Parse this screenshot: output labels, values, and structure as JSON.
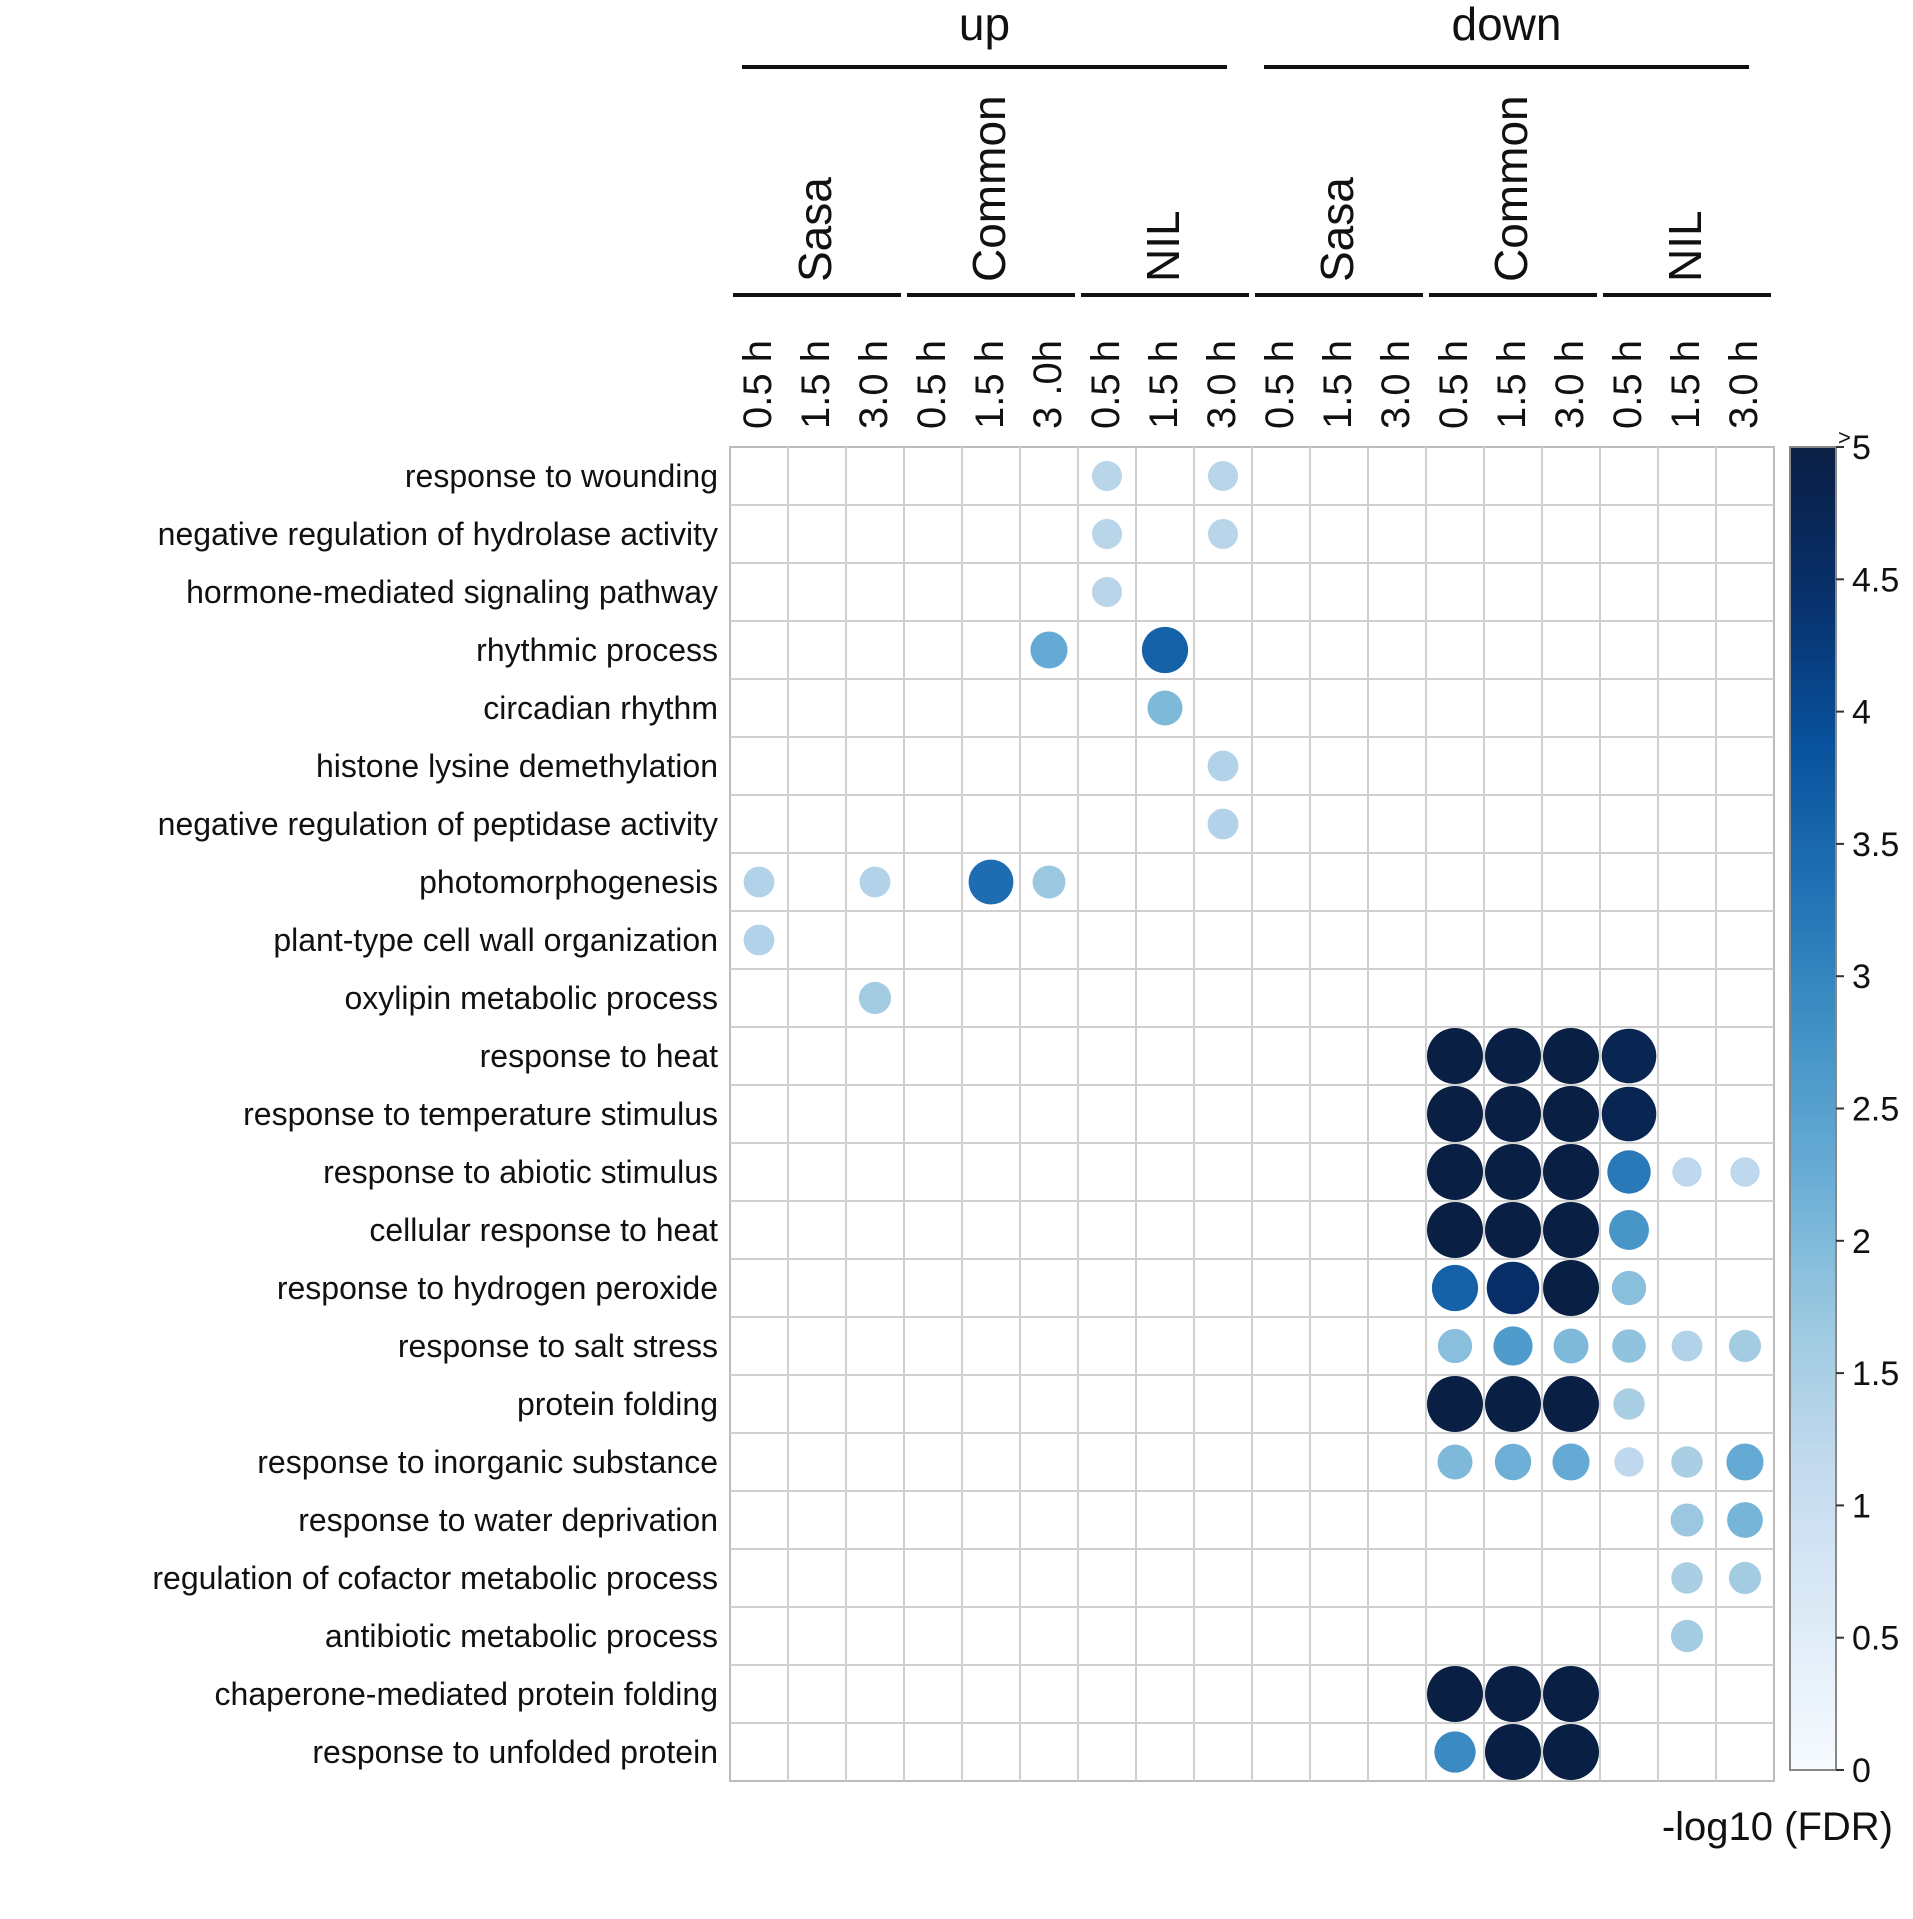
{
  "chart_data": {
    "type": "heatmap",
    "title": "",
    "groups": [
      {
        "label": "up",
        "subgroups": [
          "Sasa",
          "Common",
          "NIL"
        ]
      },
      {
        "label": "down",
        "subgroups": [
          "Sasa",
          "Common",
          "NIL"
        ]
      }
    ],
    "columns": [
      "0.5 h",
      "1.5 h",
      "3.0 h",
      "0.5 h",
      "1.5 h",
      "3 .0h",
      "0.5 h",
      "1.5 h",
      "3.0 h",
      "0.5 h",
      "1.5 h",
      "3.0 h",
      "0.5 h",
      "1.5 h",
      "3.0 h",
      "0.5 h",
      "1.5 h",
      "3.0 h"
    ],
    "rows": [
      "response to wounding",
      "negative regulation of hydrolase activity",
      "hormone-mediated signaling pathway",
      "rhythmic process",
      "circadian rhythm",
      "histone lysine demethylation",
      "negative regulation of peptidase activity",
      "photomorphogenesis",
      "plant-type cell wall organization",
      "oxylipin metabolic process",
      "response to heat",
      "response to temperature stimulus",
      "response to abiotic stimulus",
      "cellular response to heat",
      "response to hydrogen peroxide",
      "response to salt stress",
      "protein folding",
      "response to inorganic substance",
      "response to water deprivation",
      "regulation of cofactor metabolic process",
      "antibiotic metabolic process",
      "chaperone-mediated protein folding",
      "response to unfolded protein"
    ],
    "points": [
      [
        0,
        6,
        1.3
      ],
      [
        0,
        8,
        1.3
      ],
      [
        1,
        6,
        1.3
      ],
      [
        1,
        8,
        1.3
      ],
      [
        2,
        6,
        1.3
      ],
      [
        3,
        5,
        2.3
      ],
      [
        3,
        7,
        3.6
      ],
      [
        4,
        7,
        2.0
      ],
      [
        5,
        8,
        1.4
      ],
      [
        6,
        8,
        1.4
      ],
      [
        7,
        0,
        1.4
      ],
      [
        7,
        2,
        1.4
      ],
      [
        7,
        4,
        3.4
      ],
      [
        7,
        5,
        1.7
      ],
      [
        8,
        0,
        1.4
      ],
      [
        9,
        2,
        1.6
      ],
      [
        10,
        12,
        5
      ],
      [
        10,
        13,
        5
      ],
      [
        10,
        14,
        5
      ],
      [
        10,
        15,
        4.8
      ],
      [
        11,
        12,
        5
      ],
      [
        11,
        13,
        5
      ],
      [
        11,
        14,
        5
      ],
      [
        11,
        15,
        4.8
      ],
      [
        12,
        12,
        5
      ],
      [
        12,
        13,
        5
      ],
      [
        12,
        14,
        5
      ],
      [
        12,
        15,
        3.2
      ],
      [
        12,
        16,
        1.2
      ],
      [
        12,
        17,
        1.2
      ],
      [
        13,
        12,
        5
      ],
      [
        13,
        13,
        5
      ],
      [
        13,
        14,
        5
      ],
      [
        13,
        15,
        2.7
      ],
      [
        14,
        12,
        3.6
      ],
      [
        14,
        13,
        4.5
      ],
      [
        14,
        14,
        5
      ],
      [
        14,
        15,
        1.9
      ],
      [
        15,
        12,
        1.9
      ],
      [
        15,
        13,
        2.6
      ],
      [
        15,
        14,
        2.0
      ],
      [
        15,
        15,
        1.8
      ],
      [
        15,
        16,
        1.4
      ],
      [
        15,
        17,
        1.6
      ],
      [
        16,
        12,
        5
      ],
      [
        16,
        13,
        5
      ],
      [
        16,
        14,
        5
      ],
      [
        16,
        15,
        1.5
      ],
      [
        17,
        12,
        2.0
      ],
      [
        17,
        13,
        2.2
      ],
      [
        17,
        14,
        2.3
      ],
      [
        17,
        15,
        1.2
      ],
      [
        17,
        16,
        1.5
      ],
      [
        17,
        17,
        2.3
      ],
      [
        18,
        16,
        1.7
      ],
      [
        18,
        17,
        2.1
      ],
      [
        19,
        16,
        1.5
      ],
      [
        19,
        17,
        1.6
      ],
      [
        20,
        16,
        1.6
      ],
      [
        21,
        12,
        5
      ],
      [
        21,
        13,
        5
      ],
      [
        21,
        14,
        5
      ],
      [
        22,
        12,
        2.9
      ],
      [
        22,
        13,
        5
      ],
      [
        22,
        14,
        5
      ]
    ],
    "colorbar": {
      "label": "-log10 (FDR)",
      "range": [
        0,
        5
      ],
      "ticks": [
        "0",
        "0.5",
        "1",
        "1.5",
        "2",
        "2.5",
        "3",
        "3.5",
        "4",
        "4.5",
        "5"
      ],
      "top_marker": ">",
      "colors": [
        "#f7fbff",
        "#deebf7",
        "#c6dbef",
        "#9ecae1",
        "#6baed6",
        "#4292c6",
        "#2171b5",
        "#08519c",
        "#08306b",
        "#0a1f44"
      ]
    }
  }
}
